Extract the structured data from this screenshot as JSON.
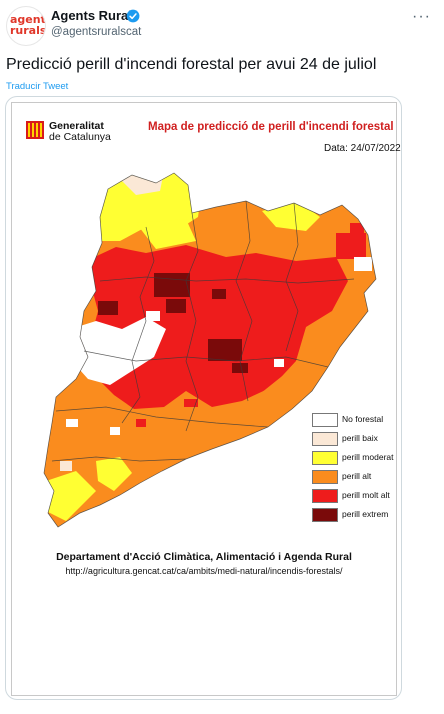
{
  "tweet": {
    "author_name": "Agents Rurals",
    "author_handle": "@agentsruralscat",
    "avatar_text_1": "agents",
    "avatar_text_2": "rurals",
    "text": "Predicció perill d'incendi forestal per avui 24 de juliol",
    "translate_label": "Traducir Tweet",
    "more_icon": "more-dots-icon"
  },
  "map": {
    "org_line1": "Generalitat",
    "org_line2": "de Catalunya",
    "title": "Mapa de predicció de perill d'incendi forestal",
    "date": "Data: 24/07/2022",
    "department": "Departament d'Acció Climàtica, Alimentació i Agenda Rural",
    "url": "http://agricultura.gencat.cat/ca/ambits/medi-natural/incendis-forestals/",
    "legend": [
      {
        "label": "No forestal",
        "color": "#ffffff"
      },
      {
        "label": "perill baix",
        "color": "#fbe8d6"
      },
      {
        "label": "perill moderat",
        "color": "#ffff33"
      },
      {
        "label": "perill alt",
        "color": "#fa8c1e"
      },
      {
        "label": "perill molt alt",
        "color": "#ee1c1c"
      },
      {
        "label": "perill extrem",
        "color": "#7a0a0a"
      }
    ]
  }
}
